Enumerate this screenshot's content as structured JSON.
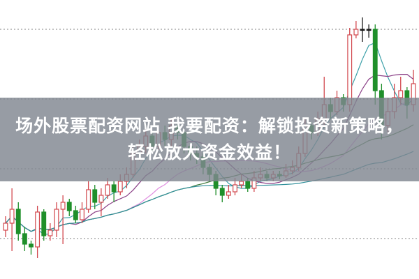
{
  "title": "场外股票配资网站 我要配资：解锁投资新策略，轻松放大资金效益！",
  "chart_data": {
    "type": "candlestick",
    "ylim": [
      0,
      40
    ],
    "grid": "horizontal-dotted",
    "gridlines": [
      5.8,
      15.8,
      25.8,
      35.8
    ],
    "colors": {
      "up": "#d2484e",
      "down": "#1f8f2a",
      "flat": "#1a1a1a",
      "grid": "#9a9a9a"
    },
    "candles": [
      [
        7,
        9,
        6,
        8
      ],
      [
        8,
        13,
        4,
        10
      ],
      [
        10,
        11,
        5.5,
        6.5
      ],
      [
        6.5,
        7.5,
        4,
        5
      ],
      [
        5,
        5.5,
        3.5,
        4.6
      ],
      [
        4.6,
        10.5,
        3,
        9.6
      ],
      [
        9.6,
        10,
        5.5,
        6.2
      ],
      [
        6.2,
        8,
        5.5,
        7
      ],
      [
        7,
        11,
        6,
        10
      ],
      [
        10,
        12,
        5,
        11
      ],
      [
        11,
        11.5,
        9,
        9.8
      ],
      [
        9.8,
        10.5,
        8,
        8.5
      ],
      [
        8.5,
        11,
        8,
        10
      ],
      [
        10,
        14,
        9.5,
        12.8
      ],
      [
        12.8,
        13.5,
        10,
        11
      ],
      [
        11,
        13,
        9,
        12
      ],
      [
        12,
        14.5,
        11.5,
        13.5
      ],
      [
        13.5,
        14,
        11,
        12.5
      ],
      [
        12.5,
        15,
        12,
        14
      ],
      [
        14,
        16,
        13,
        15
      ],
      [
        15,
        19,
        14.5,
        18
      ],
      [
        18,
        20,
        17,
        19
      ],
      [
        19,
        21.5,
        18,
        20.5
      ],
      [
        20.5,
        21,
        18,
        19
      ],
      [
        19,
        22,
        18.5,
        21
      ],
      [
        21,
        22,
        19,
        20
      ],
      [
        20,
        23,
        19,
        22
      ],
      [
        22,
        23,
        20,
        21
      ],
      [
        21,
        21.5,
        18,
        19
      ],
      [
        19,
        19.5,
        17,
        18
      ],
      [
        18,
        19,
        16.5,
        17.5
      ],
      [
        17.5,
        18,
        15,
        16
      ],
      [
        16,
        16.5,
        14,
        15
      ],
      [
        15,
        15.5,
        12,
        13
      ],
      [
        13,
        13.5,
        11,
        12
      ],
      [
        12,
        13.5,
        11.5,
        12.5
      ],
      [
        12.5,
        14.5,
        12,
        13.5
      ],
      [
        13.5,
        15,
        13,
        14
      ],
      [
        14,
        14.5,
        12.5,
        13
      ],
      [
        13,
        15.5,
        12.5,
        14.5
      ],
      [
        14.5,
        16,
        14,
        15
      ],
      [
        15,
        15.5,
        14,
        14.5
      ],
      [
        14.5,
        15.5,
        14,
        15
      ],
      [
        15,
        15.5,
        14.3,
        14.8
      ],
      [
        14.8,
        16.5,
        14.5,
        15.5
      ],
      [
        15.5,
        17,
        15,
        16
      ],
      [
        16,
        19,
        15.5,
        18
      ],
      [
        18,
        23,
        17.5,
        22
      ],
      [
        22,
        22.5,
        20,
        21
      ],
      [
        21,
        24,
        20.5,
        23
      ],
      [
        23,
        29,
        22,
        25
      ],
      [
        25,
        26,
        23,
        24
      ],
      [
        24,
        27,
        23.5,
        26
      ],
      [
        26,
        26.5,
        24,
        25
      ],
      [
        25,
        36,
        24,
        35
      ],
      [
        35,
        37,
        34.5,
        35.8
      ],
      [
        35.8,
        37.5,
        34,
        35.8
      ],
      [
        35.8,
        36.5,
        34.6,
        35.8
      ],
      [
        35.8,
        36.5,
        25,
        27
      ],
      [
        27,
        28,
        20,
        22
      ],
      [
        22,
        26,
        21,
        24
      ],
      [
        24,
        28,
        23,
        26
      ],
      [
        26,
        29,
        25,
        27
      ],
      [
        27,
        27.5,
        23,
        25
      ],
      [
        25,
        30,
        24,
        28
      ]
    ],
    "moving_averages": [
      {
        "period": 5,
        "color": "#3a9fa8"
      },
      {
        "period": 10,
        "color": "#8a3f86"
      },
      {
        "period": 20,
        "color": "#e08fe0"
      },
      {
        "period": 30,
        "color": "#3f7a3a"
      },
      {
        "period": 60,
        "color": "#2f8f9a"
      }
    ]
  }
}
